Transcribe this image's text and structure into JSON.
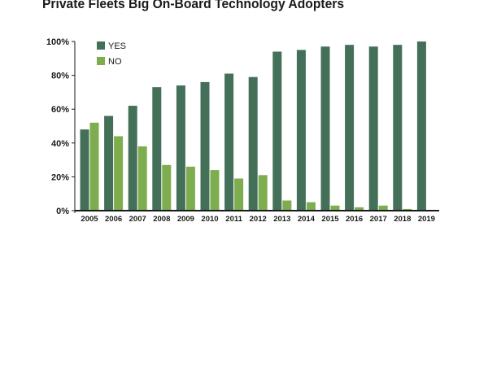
{
  "chart_data": {
    "type": "bar",
    "title": "Private Fleets Big On-Board Technology Adopters",
    "categories": [
      "2005",
      "2006",
      "2007",
      "2008",
      "2009",
      "2010",
      "2011",
      "2012",
      "2013",
      "2014",
      "2015",
      "2016",
      "2017",
      "2018",
      "2019"
    ],
    "series": [
      {
        "name": "YES",
        "color": "#44705a",
        "values": [
          48,
          56,
          62,
          73,
          74,
          76,
          81,
          79,
          94,
          95,
          97,
          98,
          97,
          98,
          100
        ]
      },
      {
        "name": "NO",
        "color": "#7ead4f",
        "values": [
          52,
          44,
          38,
          27,
          26,
          24,
          19,
          21,
          6,
          5,
          3,
          2,
          3,
          1,
          0
        ]
      }
    ],
    "yticks": [
      "0%",
      "20%",
      "40%",
      "60%",
      "80%",
      "100%"
    ],
    "ylim": [
      0,
      100
    ],
    "xlabel": "",
    "ylabel": "",
    "legend": "top-left"
  }
}
